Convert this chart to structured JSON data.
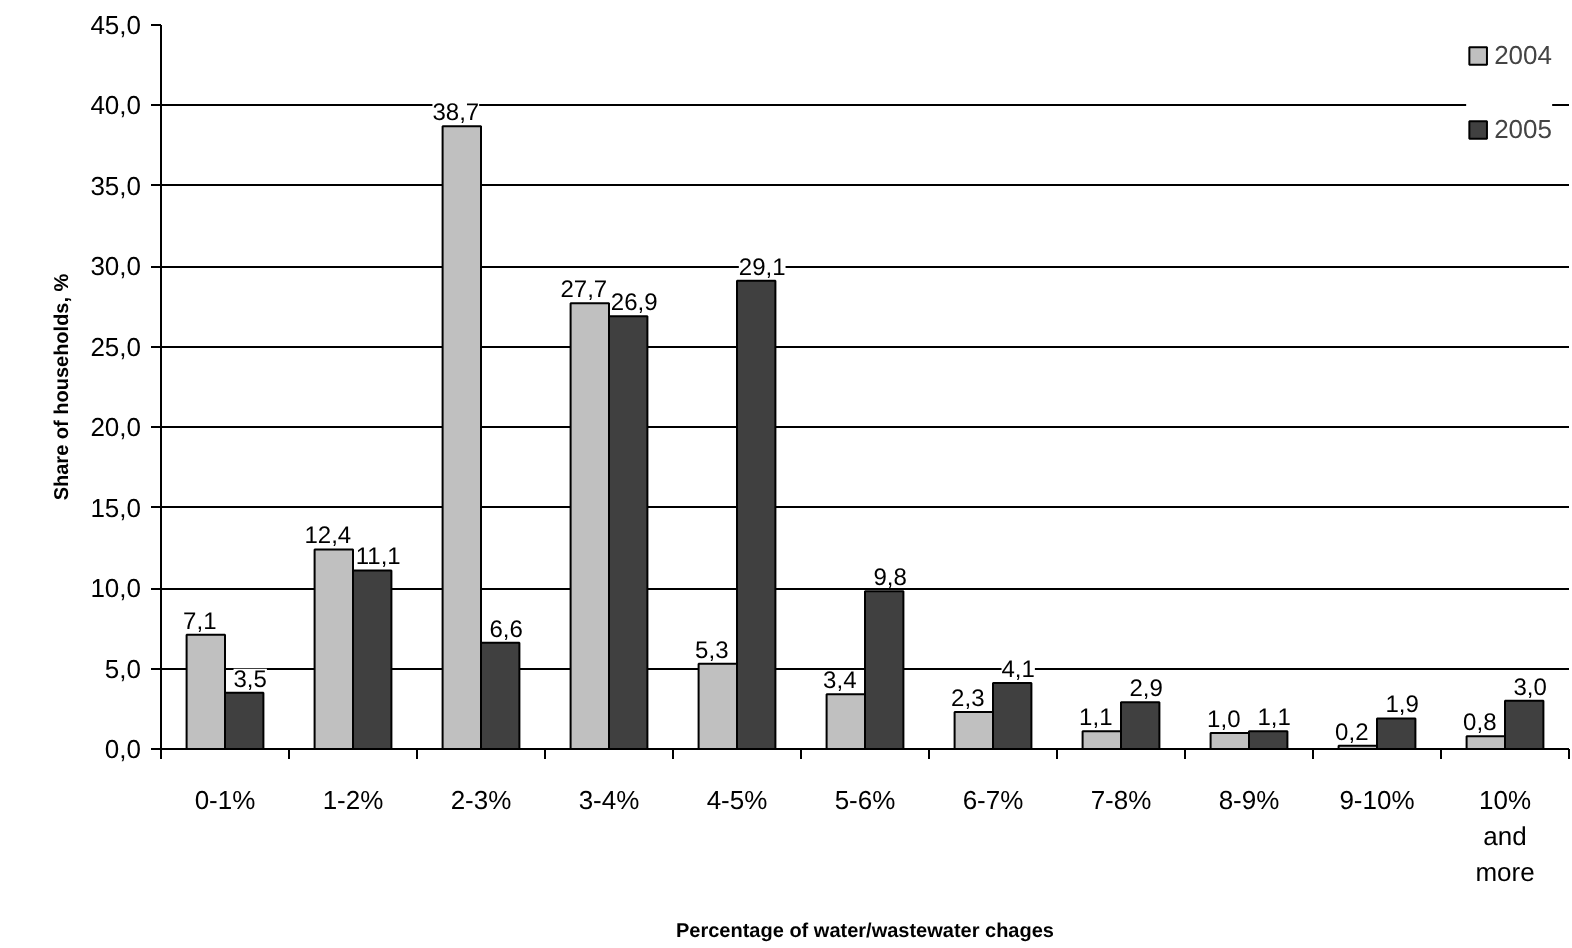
{
  "chart_data": {
    "type": "bar",
    "xlabel": "Percentage of water/wastewater chages",
    "ylabel": "Share of households, %",
    "categories": [
      "0-1%",
      "1-2%",
      "2-3%",
      "3-4%",
      "4-5%",
      "5-6%",
      "6-7%",
      "7-8%",
      "8-9%",
      "9-10%",
      "10% and more"
    ],
    "series": [
      {
        "name": "2004",
        "color": "#c0c0c0",
        "values": [
          7.1,
          12.4,
          38.7,
          27.7,
          5.3,
          3.4,
          2.3,
          1.1,
          1.0,
          0.2,
          0.8
        ],
        "value_labels": [
          "7,1",
          "12,4",
          "38,7",
          "27,7",
          "5,3",
          "3,4",
          "2,3",
          "1,1",
          "1,0",
          "0,2",
          "0,8"
        ]
      },
      {
        "name": "2005",
        "color": "#404040",
        "values": [
          3.5,
          11.1,
          6.6,
          26.9,
          29.1,
          9.8,
          4.1,
          2.9,
          1.1,
          1.9,
          3.0
        ],
        "value_labels": [
          "3,5",
          "11,1",
          "6,6",
          "26,9",
          "29,1",
          "9,8",
          "4,1",
          "2,9",
          "1,1",
          "1,9",
          "3,0"
        ]
      }
    ],
    "ylim": [
      0,
      45
    ],
    "yticks": [
      {
        "value": 0,
        "label": "0,0"
      },
      {
        "value": 5,
        "label": "5,0"
      },
      {
        "value": 10,
        "label": "10,0"
      },
      {
        "value": 15,
        "label": "15,0"
      },
      {
        "value": 20,
        "label": "20,0"
      },
      {
        "value": 25,
        "label": "25,0"
      },
      {
        "value": 30,
        "label": "30,0"
      },
      {
        "value": 35,
        "label": "35,0"
      },
      {
        "value": 40,
        "label": "40,0"
      },
      {
        "value": 45,
        "label": "45,0"
      }
    ],
    "grid": "y",
    "legend": "top right"
  }
}
